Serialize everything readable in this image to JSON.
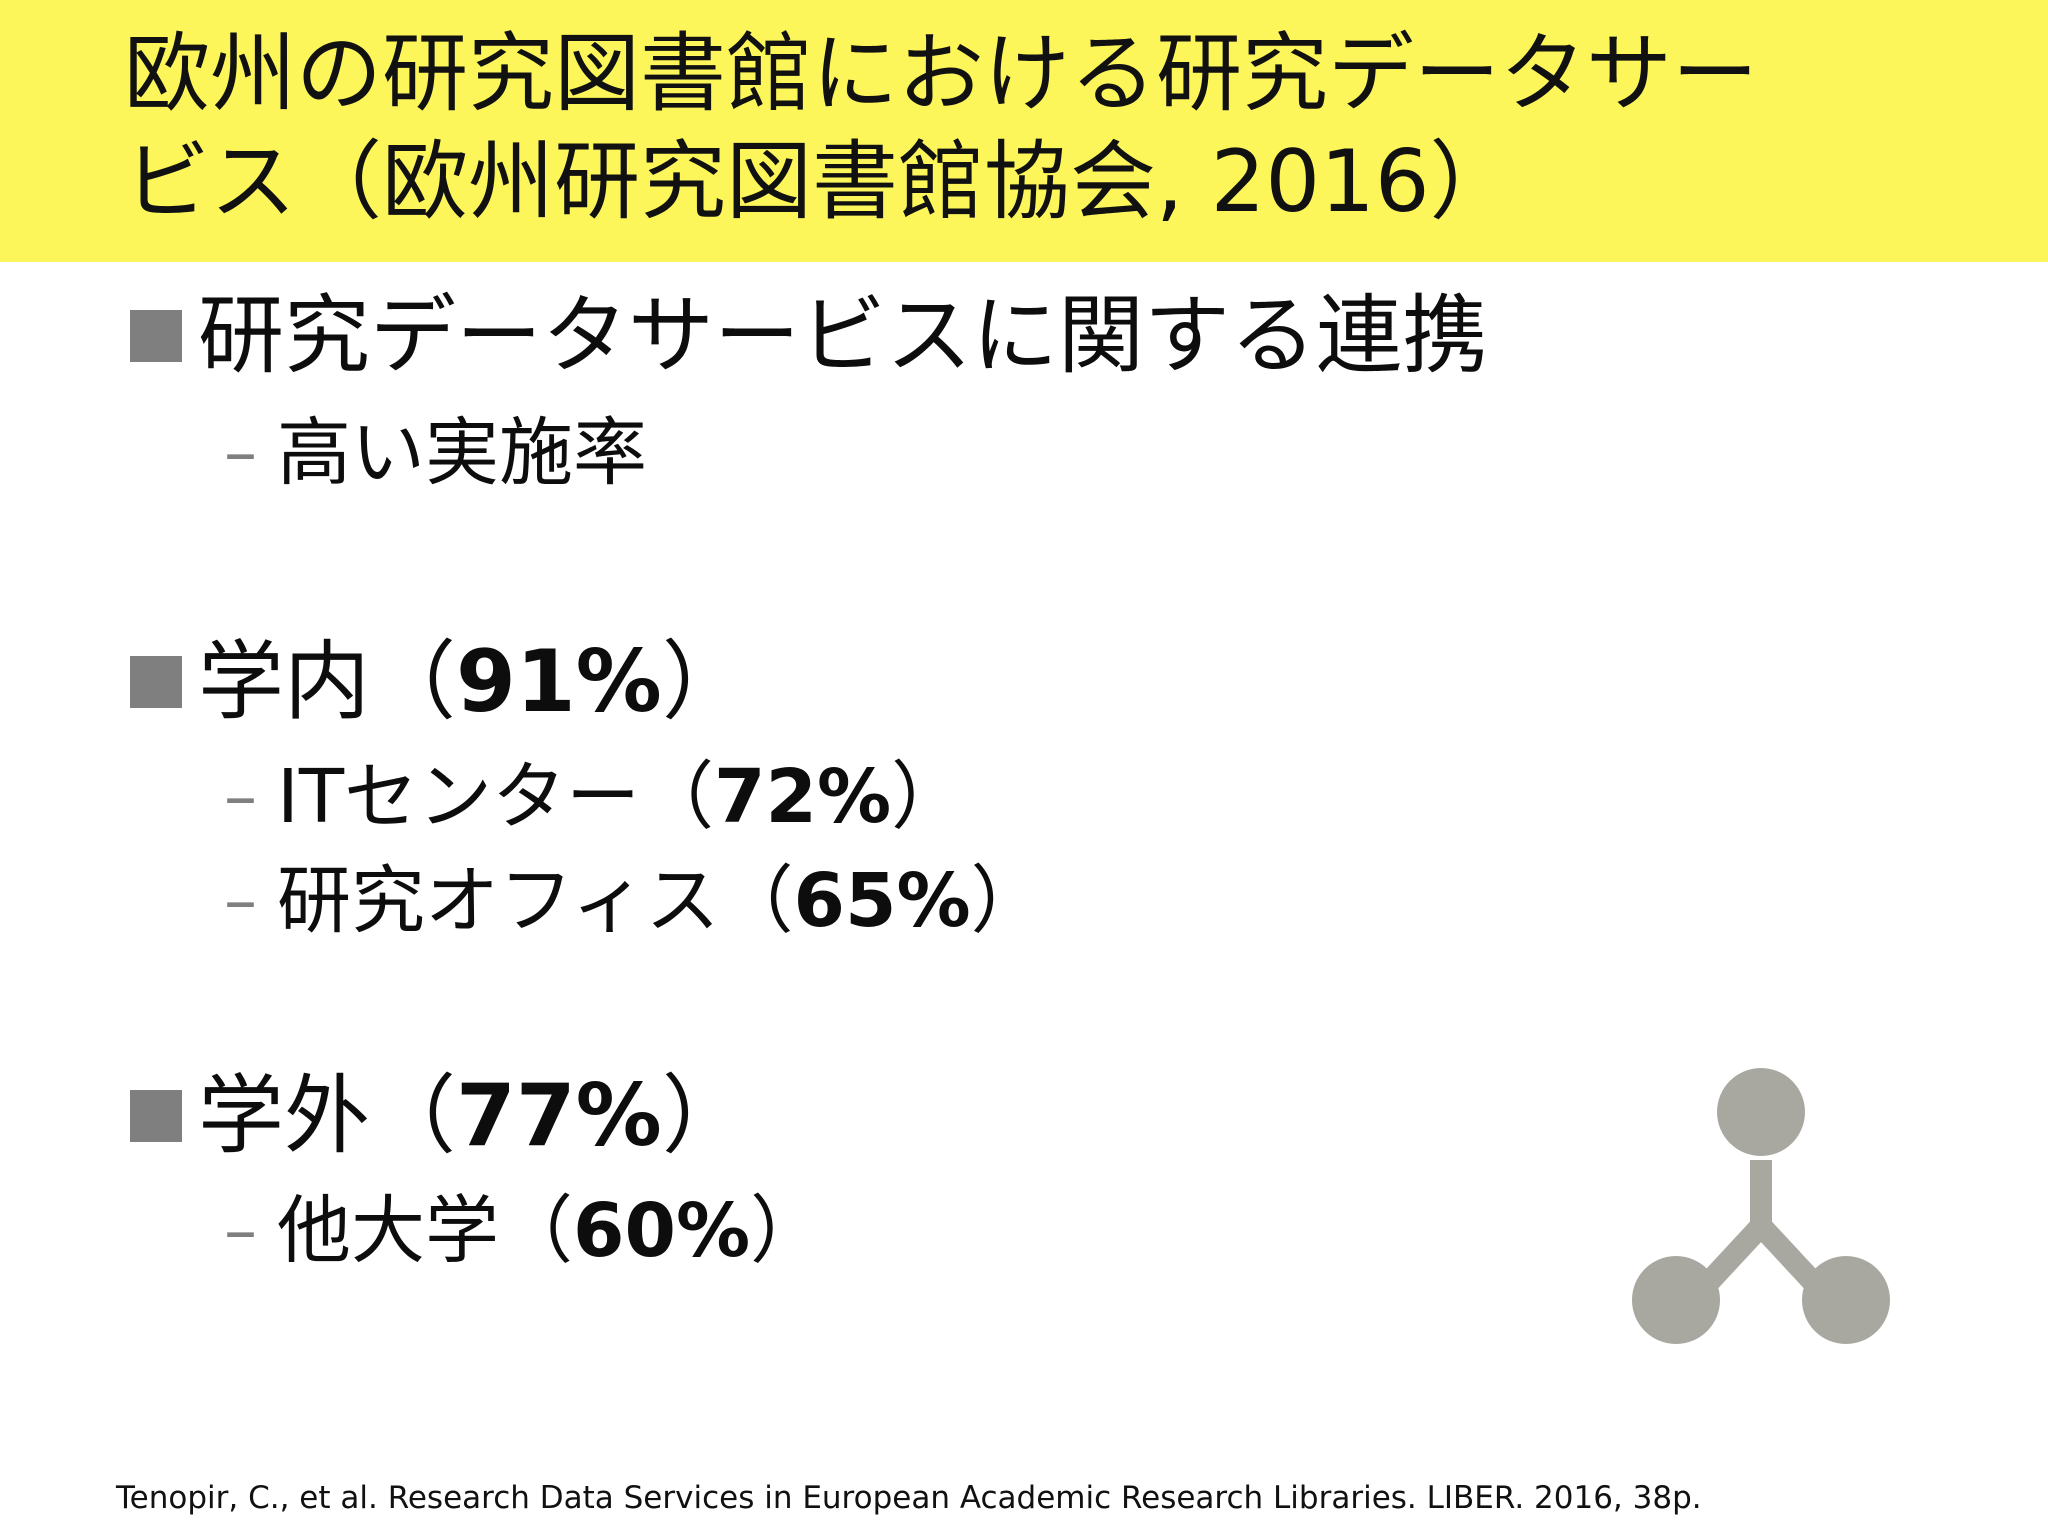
{
  "title": {
    "line1": "欧州の研究図書館における研究データサー",
    "line2": "ビス（欧州研究図書館協会, 2016）"
  },
  "bullets": [
    {
      "label": "研究データサービスに関する連携",
      "sub": [
        {
          "label": "高い実施率"
        }
      ]
    },
    {
      "label": "学内（",
      "percent": "91%",
      "close": "）",
      "sub": [
        {
          "label": "ITセンター（",
          "percent": "72%",
          "close": "）"
        },
        {
          "label": "研究オフィス（",
          "percent": "65%",
          "close": "）"
        }
      ]
    },
    {
      "label": "学外（",
      "percent": "77%",
      "close": "）",
      "sub": [
        {
          "label": "他大学（",
          "percent": "60%",
          "close": "）"
        }
      ]
    }
  ],
  "citation": "Tenopir, C., et al. Research Data Services in European Academic Research Libraries. LIBER. 2016, 38p.",
  "icon": "network-nodes-icon",
  "colors": {
    "title_band": "#fcf65a",
    "bullet_square": "#7f7f7f",
    "icon_gray": "#a8a8a0"
  }
}
